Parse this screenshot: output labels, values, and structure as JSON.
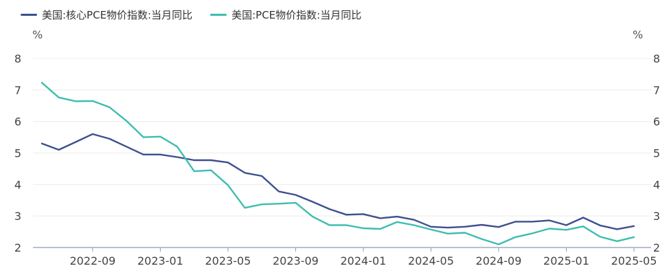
{
  "chart_data": {
    "type": "line",
    "y_unit_left": "%",
    "y_unit_right": "%",
    "ylim": [
      2,
      8
    ],
    "yticks": [
      "2",
      "3",
      "4",
      "5",
      "6",
      "7",
      "8"
    ],
    "x_tick_labels": [
      "2022-09",
      "2023-01",
      "2023-05",
      "2023-09",
      "2024-01",
      "2024-05",
      "2024-09",
      "2025-01",
      "2025-05"
    ],
    "x": [
      "2022-06",
      "2022-07",
      "2022-08",
      "2022-09",
      "2022-10",
      "2022-11",
      "2022-12",
      "2023-01",
      "2023-02",
      "2023-03",
      "2023-04",
      "2023-05",
      "2023-06",
      "2023-07",
      "2023-08",
      "2023-09",
      "2023-10",
      "2023-11",
      "2023-12",
      "2024-01",
      "2024-02",
      "2024-03",
      "2024-04",
      "2024-05",
      "2024-06",
      "2024-07",
      "2024-08",
      "2024-09",
      "2024-10",
      "2024-11",
      "2024-12",
      "2025-01",
      "2025-02",
      "2025-03",
      "2025-04",
      "2025-05"
    ],
    "grid": true,
    "legend_position": "top-left",
    "series": [
      {
        "name": "美国:核心PCE物价指数:当月同比",
        "color": "#3d4f8f",
        "values": [
          5.3,
          5.1,
          5.35,
          5.6,
          5.45,
          5.2,
          4.95,
          4.95,
          4.87,
          4.77,
          4.77,
          4.7,
          4.37,
          4.27,
          3.78,
          3.67,
          3.45,
          3.22,
          3.04,
          3.06,
          2.93,
          2.98,
          2.88,
          2.66,
          2.63,
          2.66,
          2.72,
          2.65,
          2.82,
          2.82,
          2.86,
          2.71,
          2.95,
          2.7,
          2.58,
          2.68
        ]
      },
      {
        "name": "美国:PCE物价指数:当月同比",
        "color": "#3dbdaf",
        "values": [
          7.23,
          6.76,
          6.64,
          6.65,
          6.45,
          6.02,
          5.5,
          5.52,
          5.2,
          4.42,
          4.45,
          3.98,
          3.26,
          3.37,
          3.39,
          3.42,
          2.98,
          2.71,
          2.71,
          2.61,
          2.59,
          2.81,
          2.71,
          2.57,
          2.44,
          2.47,
          2.27,
          2.1,
          2.33,
          2.45,
          2.6,
          2.56,
          2.67,
          2.34,
          2.2,
          2.33
        ]
      }
    ]
  }
}
